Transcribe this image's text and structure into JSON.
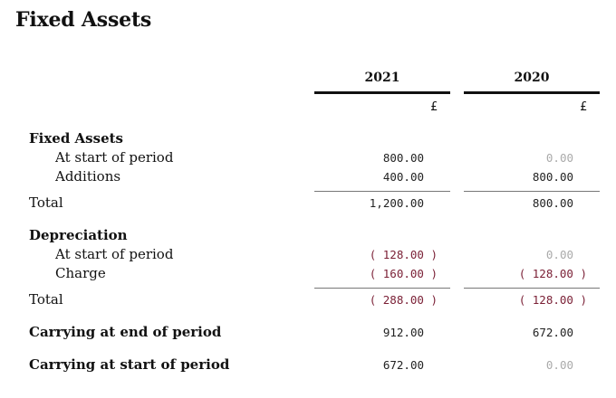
{
  "title": "Fixed Assets",
  "columns": [
    {
      "year": "2021",
      "unit": "£"
    },
    {
      "year": "2020",
      "unit": "£"
    }
  ],
  "sections": {
    "fixed_assets": {
      "heading": "Fixed Assets",
      "start": {
        "label": "At start of period",
        "v2021": "800.00",
        "v2020": "0.00"
      },
      "additions": {
        "label": "Additions",
        "v2021": "400.00",
        "v2020": "800.00"
      },
      "total": {
        "label": "Total",
        "v2021": "1,200.00",
        "v2020": "800.00"
      }
    },
    "depreciation": {
      "heading": "Depreciation",
      "start": {
        "label": "At start of period",
        "v2021": "( 128.00 )",
        "v2020": "0.00"
      },
      "charge": {
        "label": "Charge",
        "v2021": "( 160.00 )",
        "v2020": "( 128.00 )"
      },
      "total": {
        "label": "Total",
        "v2021": "( 288.00 )",
        "v2020": "( 128.00 )"
      }
    },
    "carrying_end": {
      "label": "Carrying at end of period",
      "v2021": "912.00",
      "v2020": "672.00"
    },
    "carrying_start": {
      "label": "Carrying at start of period",
      "v2021": "672.00",
      "v2020": "0.00"
    }
  }
}
